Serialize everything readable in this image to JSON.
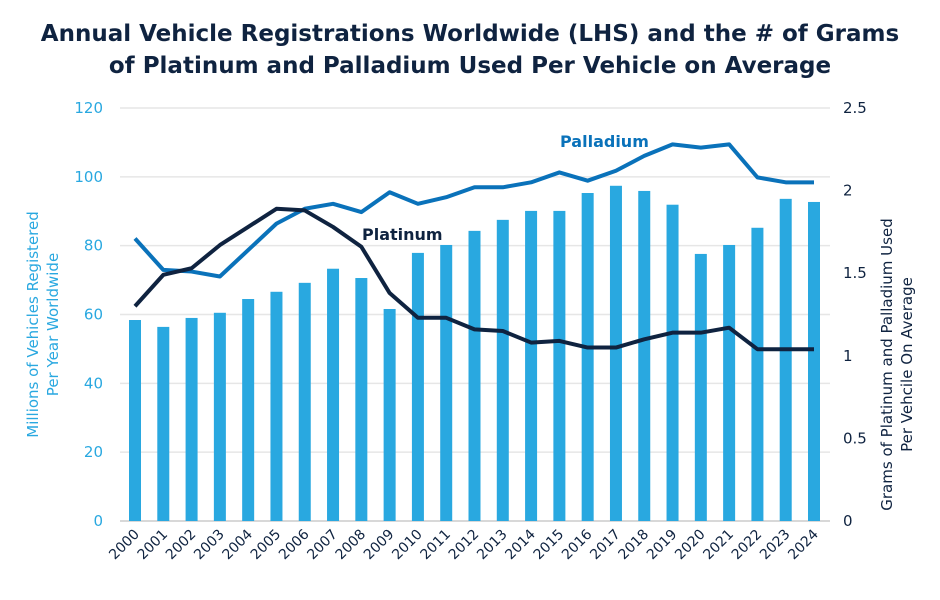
{
  "chart_data": {
    "type": "bar+line",
    "title_lines": [
      "Annual Vehicle Registrations Worldwide (LHS) and the # of Grams",
      "of Platinum and Palladium Used Per Vehicle on Average"
    ],
    "ylabel_left_lines": [
      "Millions of Vehicles Registered",
      "Per Year Worldwide"
    ],
    "ylabel_right_lines": [
      "Grams of Platinum and Palladium Used",
      "Per Vehcile On Average"
    ],
    "ylim_left": [
      0,
      120
    ],
    "yticks_left": [
      "0",
      "20",
      "40",
      "60",
      "80",
      "100",
      "120"
    ],
    "ylim_right": [
      0,
      2.5
    ],
    "yticks_right": [
      "0",
      "0.5",
      "1",
      "1.5",
      "2",
      "2.5"
    ],
    "grid": true,
    "categories": [
      "2000",
      "2001",
      "2002",
      "2003",
      "2004",
      "2005",
      "2006",
      "2007",
      "2008",
      "2009",
      "2010",
      "2011",
      "2012",
      "2013",
      "2014",
      "2015",
      "2016",
      "2017",
      "2018",
      "2019",
      "2020",
      "2021",
      "2022",
      "2023",
      "2024"
    ],
    "bars": {
      "axis": "left",
      "color": "#29a8e0",
      "values": [
        58.4,
        56.4,
        59,
        60.5,
        64.5,
        66.6,
        69.2,
        73.3,
        70.6,
        61.6,
        77.9,
        80.2,
        84.3,
        87.5,
        90.1,
        90.1,
        95.3,
        97.4,
        95.9,
        91.9,
        77.6,
        80.2,
        85.2,
        93.6,
        92.7
      ]
    },
    "series": [
      {
        "name": "Palladium",
        "axis": "right",
        "color": "#0a72ba",
        "values": [
          1.71,
          1.52,
          1.51,
          1.48,
          1.64,
          1.8,
          1.89,
          1.92,
          1.87,
          1.99,
          1.92,
          1.96,
          2.02,
          2.02,
          2.05,
          2.11,
          2.06,
          2.12,
          2.21,
          2.28,
          2.26,
          2.28,
          2.08,
          2.05,
          2.05
        ]
      },
      {
        "name": "Platinum",
        "axis": "right",
        "color": "#0f2340",
        "values": [
          1.3,
          1.49,
          1.53,
          1.67,
          1.78,
          1.89,
          1.88,
          1.78,
          1.66,
          1.38,
          1.23,
          1.23,
          1.16,
          1.15,
          1.08,
          1.09,
          1.05,
          1.05,
          1.1,
          1.14,
          1.14,
          1.17,
          1.04,
          1.04,
          1.04
        ]
      }
    ],
    "colors": {
      "left_axis": "#29a8e0",
      "right_axis": "#0f2340",
      "grid": "#e6e6e6"
    }
  }
}
